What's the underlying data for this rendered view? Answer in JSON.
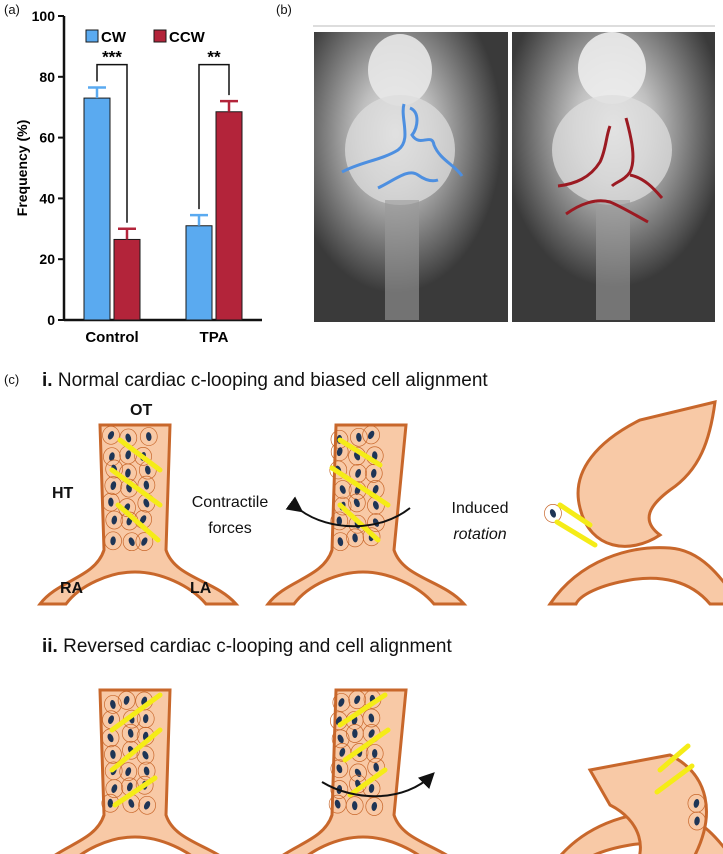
{
  "panels": {
    "a": "(a)",
    "b": "(b)",
    "c": "(c)"
  },
  "chart_data": {
    "type": "bar",
    "categories": [
      "Control",
      "TPA"
    ],
    "series": [
      {
        "name": "CW",
        "values": [
          73,
          31
        ],
        "errors": [
          3.5,
          3.5
        ],
        "color": "#5aaaf0"
      },
      {
        "name": "CCW",
        "values": [
          26.5,
          68.5
        ],
        "errors": [
          3.5,
          3.5
        ],
        "color": "#b3243a"
      }
    ],
    "ylabel": "Frequency (%)",
    "ylim": [
      0,
      100
    ],
    "yticks": [
      0,
      20,
      40,
      60,
      80,
      100
    ],
    "legend_position": "top",
    "significance": [
      {
        "category": "Control",
        "label": "***"
      },
      {
        "category": "TPA",
        "label": "**"
      }
    ]
  },
  "diagram": {
    "row_i": {
      "num": "i.",
      "text": "Normal cardiac c-looping and biased cell alignment"
    },
    "row_ii": {
      "num": "ii.",
      "text": "Reversed cardiac c-looping and cell alignment"
    },
    "labels": {
      "ot": "OT",
      "ht": "HT",
      "ra": "RA",
      "la": "LA",
      "contractile": "Contractile",
      "forces": "forces",
      "induced": "Induced",
      "rotation": "rotation"
    },
    "colors": {
      "tissue_fill": "#f8c9a6",
      "tissue_stroke": "#c8672b",
      "cell_nucleus": "#1e3556",
      "alignment_line": "#f5ec17",
      "arrow": "#111111",
      "trace_blue": "#4d8fe0",
      "trace_red": "#9b1a22"
    }
  }
}
